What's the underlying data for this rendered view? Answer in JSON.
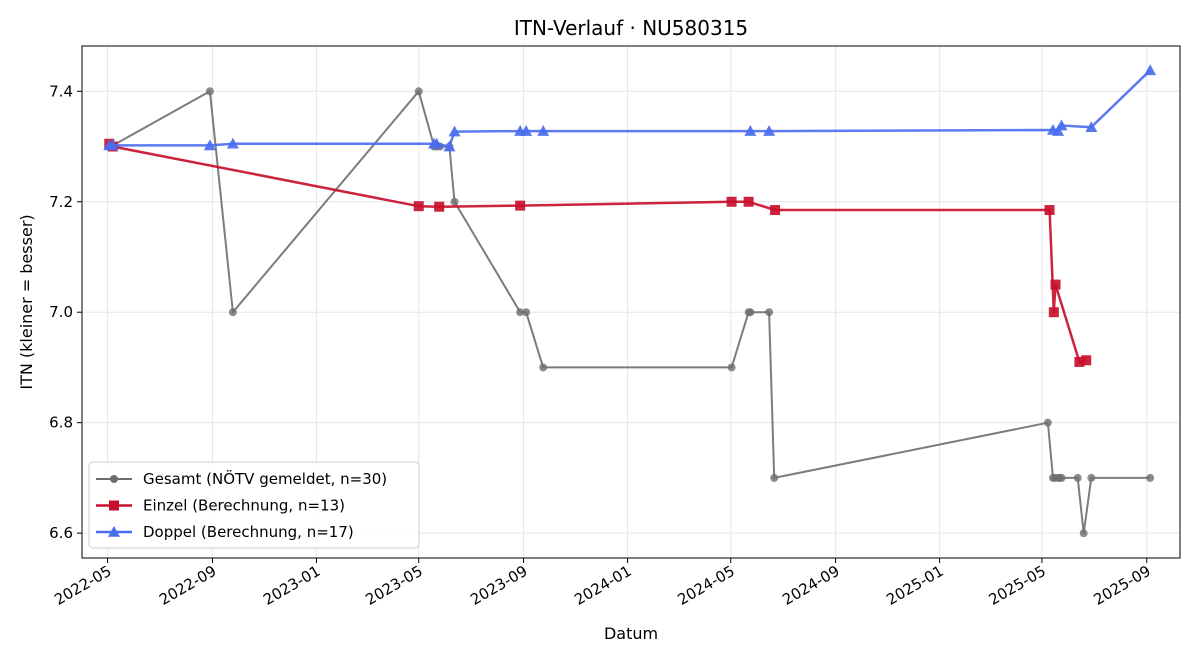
{
  "chart_data": {
    "type": "line",
    "title": "ITN-Verlauf · NU580315",
    "xlabel": "Datum",
    "ylabel": "ITN  (kleiner = besser)",
    "xlim": [
      "2022-04-01",
      "2025-10-10"
    ],
    "ylim": [
      6.555,
      7.482
    ],
    "x_ticks": [
      "2022-05",
      "2022-09",
      "2023-01",
      "2023-05",
      "2023-09",
      "2024-01",
      "2024-05",
      "2024-09",
      "2025-01",
      "2025-05",
      "2025-09"
    ],
    "y_ticks": [
      6.6,
      6.8,
      7.0,
      7.2,
      7.4
    ],
    "grid": true,
    "legend_position": "lower-left",
    "series": [
      {
        "name": "Gesamt (NÖTV gemeldet, n=30)",
        "color": "#6e6e6e",
        "marker": "circle",
        "points": [
          [
            "2022-05-03",
            7.3
          ],
          [
            "2022-05-05",
            7.3
          ],
          [
            "2022-08-29",
            7.4
          ],
          [
            "2022-09-25",
            7.0
          ],
          [
            "2023-05-01",
            7.4
          ],
          [
            "2023-05-19",
            7.3
          ],
          [
            "2023-05-22",
            7.3
          ],
          [
            "2023-05-26",
            7.3
          ],
          [
            "2023-06-06",
            7.3
          ],
          [
            "2023-06-12",
            7.2
          ],
          [
            "2023-08-28",
            7.0
          ],
          [
            "2023-09-04",
            7.0
          ],
          [
            "2023-09-24",
            6.9
          ],
          [
            "2024-05-02",
            6.9
          ],
          [
            "2024-05-22",
            7.0
          ],
          [
            "2024-05-24",
            7.0
          ],
          [
            "2024-06-15",
            7.0
          ],
          [
            "2024-06-21",
            6.7
          ],
          [
            "2025-05-08",
            6.8
          ],
          [
            "2025-05-14",
            6.7
          ],
          [
            "2025-05-16",
            6.7
          ],
          [
            "2025-05-20",
            6.7
          ],
          [
            "2025-05-22",
            6.7
          ],
          [
            "2025-05-24",
            6.7
          ],
          [
            "2025-06-12",
            6.7
          ],
          [
            "2025-06-19",
            6.6
          ],
          [
            "2025-06-28",
            6.7
          ],
          [
            "2025-09-05",
            6.7
          ]
        ]
      },
      {
        "name": "Einzel (Berechnung, n=13)",
        "color": "#c8102e",
        "marker": "square",
        "points": [
          [
            "2022-05-03",
            7.305
          ],
          [
            "2022-05-07",
            7.3
          ],
          [
            "2023-05-01",
            7.192
          ],
          [
            "2023-05-25",
            7.191
          ],
          [
            "2023-08-28",
            7.193
          ],
          [
            "2024-05-02",
            7.2
          ],
          [
            "2024-05-22",
            7.2
          ],
          [
            "2024-06-22",
            7.185
          ],
          [
            "2025-05-10",
            7.185
          ],
          [
            "2025-05-15",
            7.0
          ],
          [
            "2025-05-17",
            7.05
          ],
          [
            "2025-06-14",
            6.91
          ],
          [
            "2025-06-22",
            6.913
          ]
        ]
      },
      {
        "name": "Doppel (Berechnung, n=17)",
        "color": "#4a6cf0",
        "marker": "triangle",
        "points": [
          [
            "2022-05-03",
            7.302
          ],
          [
            "2022-05-07",
            7.302
          ],
          [
            "2022-08-29",
            7.302
          ],
          [
            "2022-09-25",
            7.305
          ],
          [
            "2023-05-19",
            7.305
          ],
          [
            "2023-05-22",
            7.305
          ],
          [
            "2023-06-06",
            7.3
          ],
          [
            "2023-06-12",
            7.327
          ],
          [
            "2023-08-28",
            7.328
          ],
          [
            "2023-09-04",
            7.328
          ],
          [
            "2023-09-24",
            7.328
          ],
          [
            "2024-05-24",
            7.328
          ],
          [
            "2024-06-15",
            7.328
          ],
          [
            "2025-05-14",
            7.33
          ],
          [
            "2025-05-20",
            7.328
          ],
          [
            "2025-05-24",
            7.338
          ],
          [
            "2025-06-28",
            7.335
          ],
          [
            "2025-09-05",
            7.438
          ]
        ]
      }
    ]
  }
}
